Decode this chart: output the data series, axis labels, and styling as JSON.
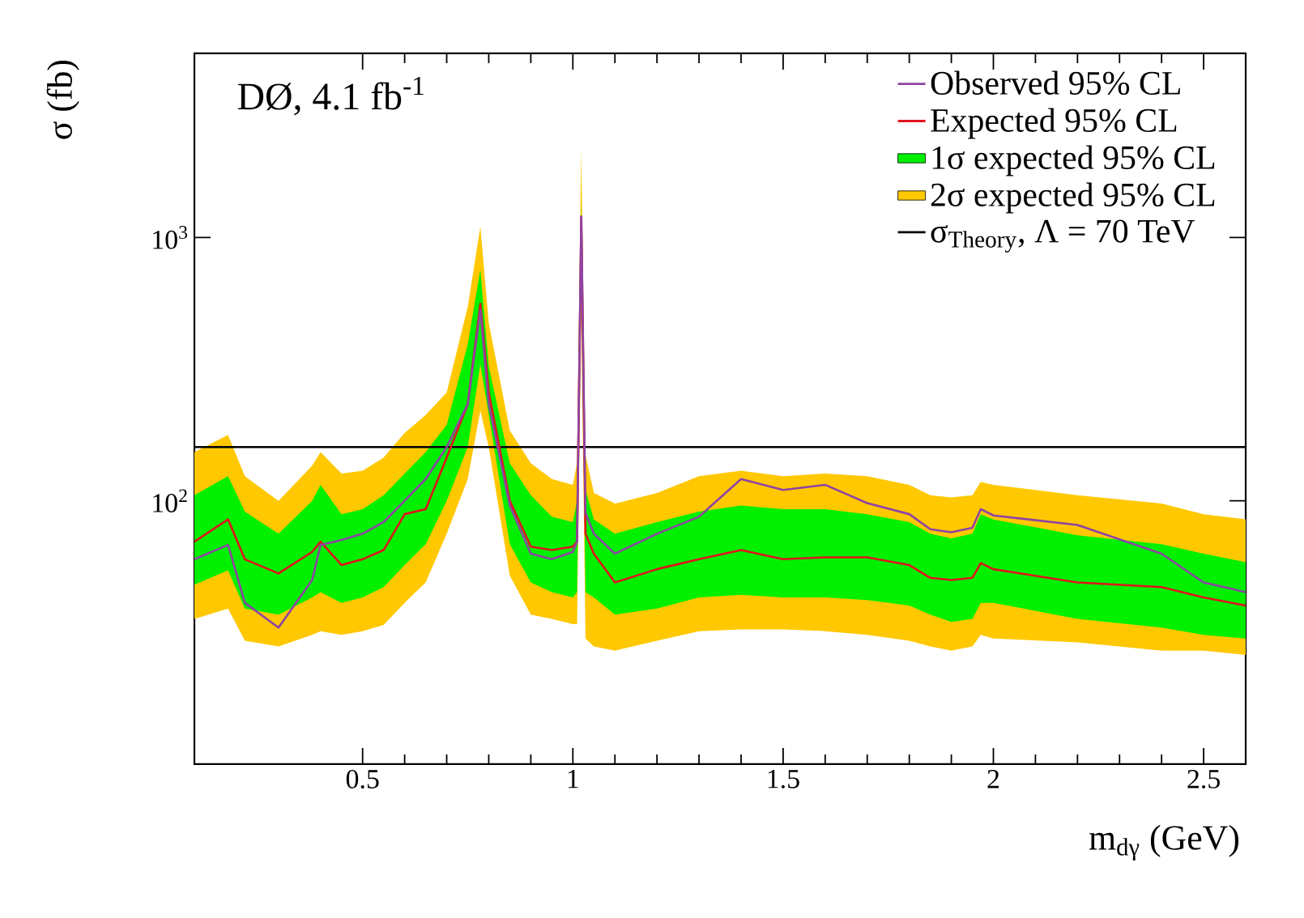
{
  "chart_data": {
    "type": "line",
    "xlabel": "m$_{dγ}$ (GeV)",
    "ylabel": "σ (fb)",
    "annotations": [
      "DØ, 4.1 fb$^{-1}$"
    ],
    "log": "y",
    "legend": "top right",
    "xlim": [
      0.1,
      2.6
    ],
    "ylim": [
      10,
      5000
    ],
    "xticks": [
      0.5,
      1,
      1.5,
      2,
      2.5
    ],
    "yticks": [
      {
        "value": 100,
        "label": "10$^{2}$"
      },
      {
        "value": 1000,
        "label": "10$^{3}$"
      }
    ],
    "x": [
      0.1,
      0.18,
      0.22,
      0.3,
      0.38,
      0.4,
      0.45,
      0.5,
      0.55,
      0.6,
      0.65,
      0.7,
      0.75,
      0.78,
      0.8,
      0.85,
      0.9,
      0.95,
      1.0,
      1.01,
      1.02,
      1.03,
      1.05,
      1.1,
      1.2,
      1.3,
      1.4,
      1.5,
      1.6,
      1.7,
      1.8,
      1.85,
      1.9,
      1.95,
      1.97,
      2.0,
      2.2,
      2.4,
      2.5,
      2.6
    ],
    "series": [
      {
        "name": "Observed 95% CL",
        "type": "line",
        "color": "#8e44a4",
        "values": [
          60,
          68,
          41,
          33,
          50,
          68,
          71,
          75,
          83,
          100,
          121,
          160,
          233,
          530,
          233,
          96,
          63,
          60,
          64,
          70,
          1200,
          90,
          75,
          63,
          75,
          87,
          121,
          110,
          115,
          98,
          89,
          78,
          76,
          79,
          93,
          88,
          81,
          63,
          49,
          45
        ]
      },
      {
        "name": "Expected 95% CL",
        "type": "line",
        "color": "#e0141e",
        "values": [
          70,
          85,
          60,
          53,
          64,
          70,
          57,
          60,
          65,
          89,
          93,
          146,
          233,
          560,
          258,
          100,
          67,
          65,
          67,
          70,
          1200,
          75,
          63,
          49,
          55,
          60,
          65,
          60,
          61,
          61,
          57,
          51,
          50,
          51,
          58,
          55,
          49,
          47,
          43,
          40
        ]
      },
      {
        "name": "1σ expected 95% CL",
        "type": "line",
        "color": "#00f000",
        "values": [
          null,
          null,
          null,
          null,
          null,
          null,
          null,
          null,
          null,
          null,
          null,
          null,
          null,
          null,
          null,
          null,
          null,
          null,
          null,
          null,
          null,
          null,
          null,
          null,
          null,
          null,
          null,
          null,
          null,
          null,
          null,
          null,
          null,
          null,
          null,
          null,
          null,
          null,
          null,
          null
        ],
        "lower": [
          48,
          54.5,
          39,
          37,
          43,
          45,
          41,
          43,
          47,
          57,
          68.5,
          100,
          160,
          330,
          212,
          68.5,
          49,
          45,
          43,
          45,
          800,
          45,
          43,
          37,
          39,
          43,
          44,
          43,
          43,
          42,
          40,
          37,
          34.7,
          35.6,
          41,
          41,
          35.6,
          33,
          31,
          30
        ],
        "upper": [
          105,
          124,
          91,
          75,
          100,
          115,
          89,
          93,
          105,
          127,
          153,
          194,
          393,
          755,
          324,
          139,
          105,
          87,
          83,
          100,
          1350,
          110,
          85,
          75,
          83,
          91,
          96,
          93,
          93,
          89,
          83,
          75,
          72,
          75,
          89,
          85,
          74,
          68.5,
          63,
          58.5
        ]
      },
      {
        "name": "2σ expected 95% CL",
        "type": "line",
        "color": "#ffc800",
        "values": [
          null,
          null,
          null,
          null,
          null,
          null,
          null,
          null,
          null,
          null,
          null,
          null,
          null,
          null,
          null,
          null,
          null,
          null,
          null,
          null,
          null,
          null,
          null,
          null,
          null,
          null,
          null,
          null,
          null,
          null,
          null,
          null,
          null,
          null,
          null,
          null,
          null,
          null,
          null,
          null
        ],
        "lower": [
          35.6,
          39,
          29.4,
          28,
          31,
          32,
          31,
          32,
          33.8,
          41,
          49,
          75,
          121,
          220,
          160,
          52,
          37,
          35.6,
          34,
          34,
          500,
          30,
          28,
          27,
          29.4,
          32,
          32.5,
          32.5,
          32,
          31,
          29.4,
          28,
          27,
          28,
          31,
          30,
          29,
          27,
          27,
          26
        ],
        "upper": [
          153,
          178,
          124,
          100,
          136,
          153,
          127,
          130,
          146,
          181,
          212,
          258,
          545,
          1100,
          473,
          185,
          139,
          121,
          115,
          140,
          2140,
          150,
          107,
          97.6,
          107,
          124,
          130,
          124,
          127,
          124,
          115,
          105,
          103,
          105,
          118,
          115,
          105,
          97.6,
          89,
          85
        ]
      },
      {
        "name": "σ$_{Theory}$, Λ = 70 TeV",
        "color": "#000000",
        "x": [
          0.1,
          2.6
        ],
        "values": [
          160,
          160
        ]
      }
    ]
  }
}
